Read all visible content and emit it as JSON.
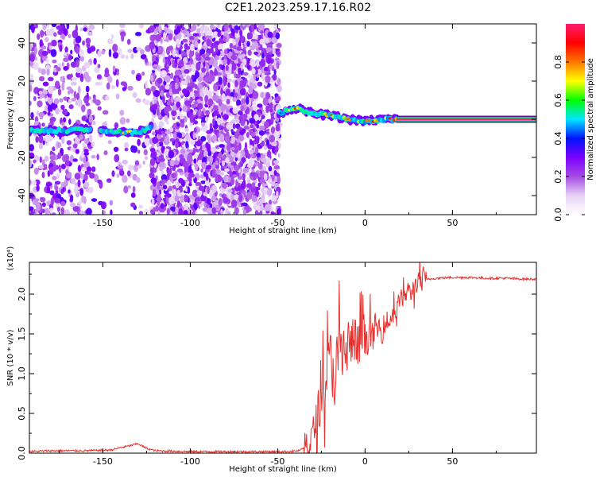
{
  "title": "C2E1.2023.259.17.16.R02",
  "colors": {
    "snr_line": "#e8312e",
    "colormap": [
      "#ffffff",
      "#e7d2f5",
      "#a64be3",
      "#7a00ff",
      "#0015ff",
      "#00e5ff",
      "#00ff00",
      "#ffff00",
      "#ff7700",
      "#ff0000",
      "#ff1e6e"
    ]
  },
  "chart_data": [
    {
      "type": "heatmap",
      "xlabel": "Height of straight line (km)",
      "ylabel": "Frequency (Hz)",
      "xlim": [
        -192,
        98
      ],
      "ylim": [
        -50,
        50
      ],
      "xticks": [
        -150,
        -100,
        -50,
        0,
        50
      ],
      "yticks": [
        40,
        20,
        0,
        -20,
        -40
      ],
      "colorbar": {
        "label": "Normalized spectral amplitude",
        "range": [
          0.0,
          1.0
        ],
        "ticks": [
          "0.0",
          "0.2",
          "0.4",
          "0.6",
          "0.8"
        ]
      },
      "scatter_regions": [
        {
          "x": [
            -192,
            -157
          ],
          "density": 0.35
        },
        {
          "x": [
            -157,
            -122
          ],
          "density": 0.12
        },
        {
          "x": [
            -122,
            -49
          ],
          "density": 0.75
        }
      ],
      "signal_trace": [
        {
          "x": -192,
          "freq": -6,
          "amp": 0.55
        },
        {
          "x": -170,
          "freq": -6,
          "amp": 0.55
        },
        {
          "x": -162,
          "freq": -5,
          "amp": 0.45
        },
        {
          "x": -155,
          "freq": -6,
          "amp": 0.3
        },
        {
          "x": -148,
          "freq": -6,
          "amp": 0.55
        },
        {
          "x": -138,
          "freq": -7,
          "amp": 0.75
        },
        {
          "x": -130,
          "freq": -7,
          "amp": 0.7
        },
        {
          "x": -122,
          "freq": -4,
          "amp": 0.45
        },
        {
          "x": -50,
          "freq": 3,
          "amp": 0.45
        },
        {
          "x": -40,
          "freq": 6,
          "amp": 0.9
        },
        {
          "x": -30,
          "freq": 3,
          "amp": 0.55
        },
        {
          "x": -20,
          "freq": 2,
          "amp": 0.85
        },
        {
          "x": -10,
          "freq": 0,
          "amp": 0.85
        },
        {
          "x": 0,
          "freq": -1,
          "amp": 0.9
        },
        {
          "x": 10,
          "freq": 0,
          "amp": 0.9
        },
        {
          "x": 18,
          "freq": 0,
          "amp": 1.0
        },
        {
          "x": 98,
          "freq": 0,
          "amp": 1.0
        }
      ]
    },
    {
      "type": "line",
      "xlabel": "Height of straight line (km)",
      "ylabel": "SNR (10 * v/v)",
      "multiplier": "(x10⁴)",
      "xlim": [
        -192,
        98
      ],
      "ylim": [
        0,
        2.4
      ],
      "xticks": [
        -150,
        -100,
        -50,
        0,
        50
      ],
      "yticks": [
        "0.0",
        "0.5",
        "1.0",
        "1.5",
        "2.0"
      ],
      "series": [
        {
          "x": [
            -192,
            -180,
            -160,
            -145,
            -140,
            -135,
            -130,
            -125,
            -120,
            -100,
            -80,
            -60,
            -45,
            -38,
            -33,
            -30,
            -28,
            -26,
            -24,
            -22,
            -20,
            -18,
            -16,
            -14,
            -12,
            -10,
            -8,
            -6,
            -4,
            -2,
            0,
            2,
            4,
            6,
            8,
            10,
            12,
            14,
            16,
            18,
            20,
            22,
            24,
            26,
            28,
            30,
            35,
            40,
            50,
            60,
            70,
            80,
            90,
            98
          ],
          "values": [
            0.02,
            0.03,
            0.03,
            0.04,
            0.07,
            0.09,
            0.12,
            0.06,
            0.03,
            0.02,
            0.02,
            0.02,
            0.02,
            0.03,
            0.08,
            0.2,
            0.4,
            0.6,
            0.85,
            1.0,
            1.2,
            1.0,
            1.15,
            1.3,
            1.25,
            1.4,
            1.35,
            1.45,
            1.3,
            1.5,
            1.4,
            1.5,
            1.45,
            1.6,
            1.55,
            1.5,
            1.7,
            1.6,
            1.85,
            1.75,
            2.0,
            1.9,
            2.05,
            2.0,
            2.1,
            2.15,
            2.18,
            2.2,
            2.21,
            2.21,
            2.2,
            2.2,
            2.19,
            2.19
          ]
        }
      ]
    }
  ]
}
